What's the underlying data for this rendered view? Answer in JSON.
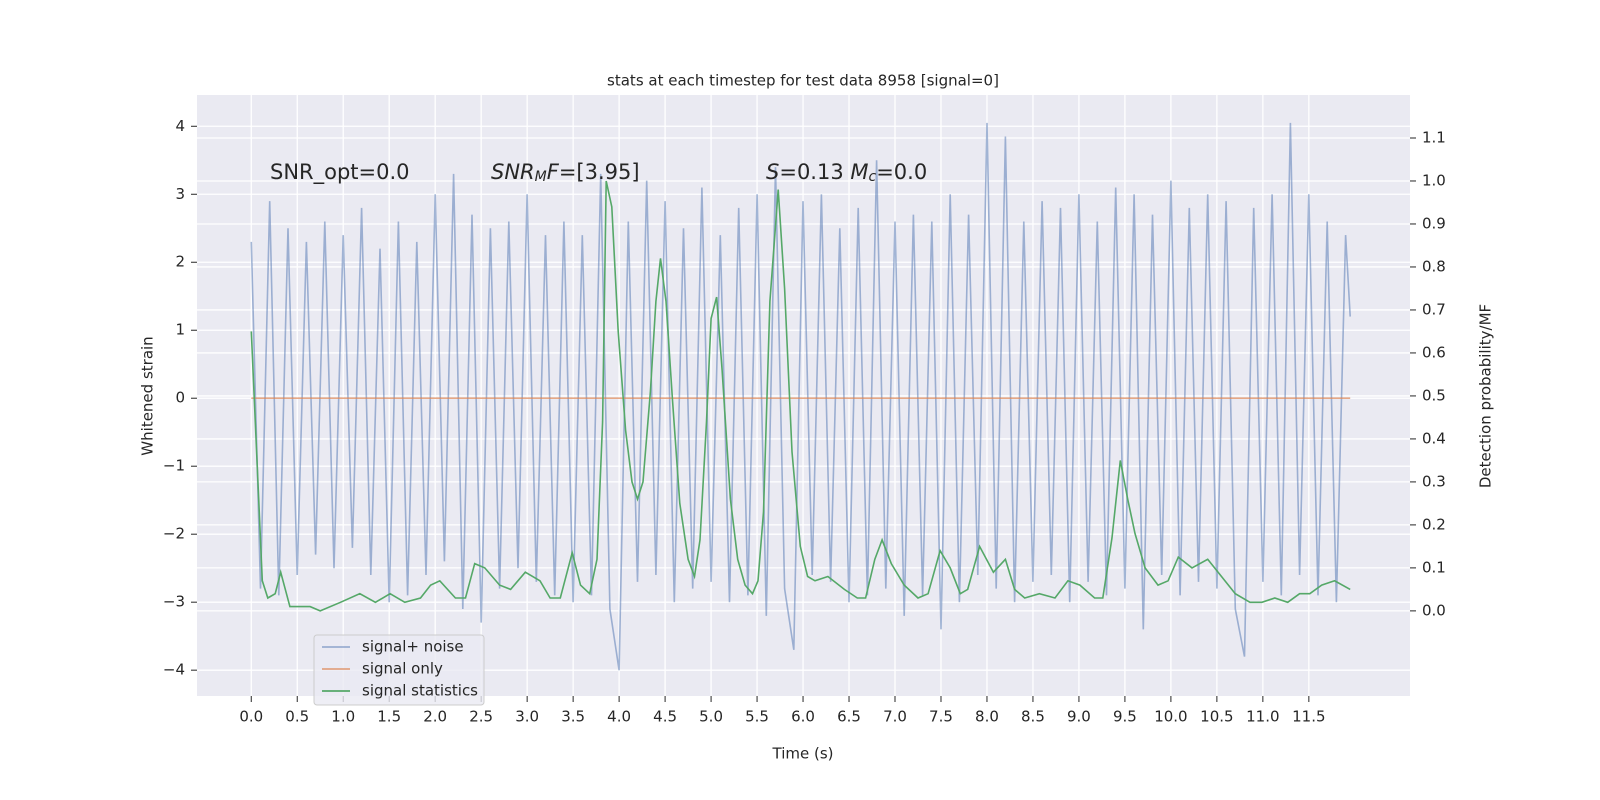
{
  "chart_data": {
    "type": "line",
    "title": "stats at each timestep for test data 8958 [signal=0]",
    "xlabel": "Time (s)",
    "ylabel": "Whitened strain",
    "y2label": "Detection probability/MF",
    "xlim": [
      -0.59,
      12.6
    ],
    "ylim": [
      -4.38,
      4.46
    ],
    "y2lim": [
      -0.198,
      1.2
    ],
    "xticks": [
      {
        "value": 0,
        "label": "0.0"
      },
      0.5,
      {
        "value": 1,
        "label": "1.0"
      },
      1.5,
      {
        "value": 2,
        "label": "2.0"
      },
      2.5,
      {
        "value": 3,
        "label": "3.0"
      },
      3.5,
      {
        "value": 4,
        "label": "4.0"
      },
      4.5,
      {
        "value": 5,
        "label": "5.0"
      },
      5.5,
      {
        "value": 6,
        "label": "6.0"
      },
      6.5,
      {
        "value": 7,
        "label": "7.0"
      },
      7.5,
      {
        "value": 8,
        "label": "8.0"
      },
      8.5,
      {
        "value": 9,
        "label": "9.0"
      },
      9.5,
      {
        "value": 10,
        "label": "10.0"
      },
      10.5,
      {
        "value": 11,
        "label": "11.0"
      },
      11.5
    ],
    "yticks": [
      {
        "value": -4,
        "label": "−4"
      },
      {
        "value": -3,
        "label": "−3"
      },
      {
        "value": -2,
        "label": "−2"
      },
      {
        "value": -1,
        "label": "−1"
      },
      0,
      1,
      2,
      3,
      4
    ],
    "y2ticks": [
      {
        "value": 0,
        "label": "0.0"
      },
      0.1,
      0.2,
      0.3,
      0.4,
      0.5,
      0.6,
      0.7,
      0.8,
      0.9,
      {
        "value": 1,
        "label": "1.0"
      },
      1.1
    ],
    "grid": true,
    "legend": "lower left",
    "annotations": [
      [
        {
          "text": "SNR_opt=0.0",
          "style": "normal"
        }
      ],
      [
        {
          "text": "SNR",
          "style": "italic"
        },
        {
          "text": "M",
          "style": "sub"
        },
        {
          "text": "F",
          "style": "italic"
        },
        {
          "text": "=[3.95]",
          "style": "normal"
        }
      ],
      [
        {
          "text": "S",
          "style": "italic"
        },
        {
          "text": "=0.13   ",
          "style": "normal"
        },
        {
          "text": "M",
          "style": "italic"
        },
        {
          "text": "c",
          "style": "sub"
        },
        {
          "text": "=0.0",
          "style": "normal"
        }
      ]
    ],
    "series": [
      {
        "name": "signal+ noise",
        "color": "#4c72b0",
        "opacity": 0.5,
        "axis": "y",
        "x": [
          0.0,
          0.1,
          0.2,
          0.3,
          0.4,
          0.5,
          0.6,
          0.7,
          0.8,
          0.9,
          1.0,
          1.1,
          1.2,
          1.3,
          1.4,
          1.5,
          1.6,
          1.7,
          1.8,
          1.9,
          2.0,
          2.1,
          2.2,
          2.3,
          2.4,
          2.5,
          2.6,
          2.7,
          2.8,
          2.9,
          3.0,
          3.1,
          3.2,
          3.3,
          3.4,
          3.5,
          3.6,
          3.7,
          3.8,
          3.9,
          4.0,
          4.1,
          4.2,
          4.3,
          4.4,
          4.5,
          4.6,
          4.7,
          4.8,
          4.9,
          5.0,
          5.1,
          5.2,
          5.3,
          5.4,
          5.5,
          5.6,
          5.7,
          5.8,
          5.9,
          6.0,
          6.1,
          6.2,
          6.3,
          6.4,
          6.5,
          6.6,
          6.7,
          6.8,
          6.9,
          7.0,
          7.1,
          7.2,
          7.3,
          7.4,
          7.5,
          7.6,
          7.7,
          7.8,
          7.9,
          8.0,
          8.1,
          8.2,
          8.3,
          8.4,
          8.5,
          8.6,
          8.7,
          8.8,
          8.9,
          9.0,
          9.1,
          9.2,
          9.3,
          9.4,
          9.5,
          9.6,
          9.7,
          9.8,
          9.9,
          10.0,
          10.1,
          10.2,
          10.3,
          10.4,
          10.5,
          10.6,
          10.7,
          10.8,
          10.9,
          11.0,
          11.1,
          11.2,
          11.3,
          11.4,
          11.5,
          11.6,
          11.7,
          11.8,
          11.9,
          11.95
        ],
        "values": [
          2.3,
          -2.8,
          2.9,
          -2.9,
          2.5,
          -2.6,
          2.3,
          -2.3,
          2.6,
          -2.5,
          2.4,
          -2.2,
          2.8,
          -2.6,
          2.2,
          -3.0,
          2.6,
          -2.9,
          2.3,
          -2.6,
          3.0,
          -2.4,
          3.3,
          -3.1,
          2.7,
          -3.3,
          2.5,
          -2.8,
          2.6,
          -2.5,
          3.0,
          -2.7,
          2.4,
          -2.9,
          2.6,
          -3.0,
          2.4,
          -2.9,
          3.3,
          -3.1,
          -4.0,
          2.6,
          -2.7,
          3.2,
          -2.6,
          2.9,
          -3.0,
          2.5,
          -2.8,
          3.1,
          -2.7,
          2.4,
          -3.0,
          2.8,
          -2.9,
          3.0,
          -3.2,
          3.4,
          -2.8,
          -3.7,
          2.9,
          -2.6,
          3.0,
          -2.7,
          2.5,
          -3.0,
          2.8,
          -2.9,
          3.5,
          -2.8,
          2.6,
          -3.2,
          2.7,
          -2.9,
          2.6,
          -3.4,
          3.0,
          -3.0,
          2.7,
          -2.6,
          4.05,
          -2.8,
          3.85,
          -3.0,
          2.6,
          -2.7,
          2.9,
          -2.6,
          2.8,
          -3.0,
          3.0,
          -2.7,
          2.6,
          -2.9,
          3.1,
          -2.8,
          3.0,
          -3.4,
          2.7,
          -2.6,
          3.2,
          -2.9,
          2.8,
          -2.7,
          3.0,
          -2.8,
          2.9,
          -3.1,
          -3.8,
          2.8,
          -2.7,
          3.0,
          -2.9,
          4.05,
          -2.6,
          3.0,
          -2.9,
          2.6,
          -3.0,
          2.4,
          1.2
        ]
      },
      {
        "name": "signal only",
        "color": "#dd8452",
        "opacity": 0.7,
        "axis": "y",
        "x": [
          0.0,
          11.95
        ],
        "values": [
          0,
          0
        ]
      },
      {
        "name": "signal statistics",
        "color": "#55a868",
        "opacity": 1,
        "axis": "y2",
        "x": [
          0.0,
          0.12,
          0.18,
          0.26,
          0.32,
          0.42,
          0.53,
          0.64,
          0.75,
          0.97,
          1.18,
          1.35,
          1.51,
          1.67,
          1.84,
          1.95,
          2.05,
          2.22,
          2.33,
          2.43,
          2.54,
          2.7,
          2.82,
          2.98,
          3.14,
          3.25,
          3.36,
          3.49,
          3.58,
          3.68,
          3.76,
          3.82,
          3.86,
          3.92,
          3.99,
          4.07,
          4.14,
          4.2,
          4.26,
          4.34,
          4.4,
          4.45,
          4.51,
          4.58,
          4.66,
          4.75,
          4.82,
          4.88,
          4.95,
          5.0,
          5.06,
          5.12,
          5.21,
          5.29,
          5.37,
          5.45,
          5.51,
          5.57,
          5.64,
          5.73,
          5.8,
          5.88,
          5.97,
          6.05,
          6.13,
          6.27,
          6.45,
          6.59,
          6.68,
          6.78,
          6.86,
          6.96,
          7.1,
          7.25,
          7.36,
          7.49,
          7.6,
          7.71,
          7.79,
          7.92,
          8.07,
          8.2,
          8.3,
          8.41,
          8.57,
          8.74,
          8.88,
          9.01,
          9.17,
          9.26,
          9.36,
          9.45,
          9.53,
          9.61,
          9.72,
          9.86,
          9.97,
          10.08,
          10.23,
          10.4,
          10.55,
          10.7,
          10.86,
          10.99,
          11.13,
          11.27,
          11.4,
          11.51,
          11.64,
          11.78,
          11.95
        ],
        "values": [
          0.65,
          0.07,
          0.03,
          0.04,
          0.09,
          0.01,
          0.01,
          0.01,
          0.0,
          0.02,
          0.04,
          0.02,
          0.04,
          0.02,
          0.03,
          0.06,
          0.07,
          0.03,
          0.03,
          0.11,
          0.1,
          0.06,
          0.05,
          0.09,
          0.07,
          0.03,
          0.03,
          0.135,
          0.06,
          0.04,
          0.12,
          0.44,
          1.0,
          0.94,
          0.65,
          0.42,
          0.3,
          0.26,
          0.3,
          0.51,
          0.72,
          0.82,
          0.72,
          0.49,
          0.25,
          0.12,
          0.08,
          0.165,
          0.44,
          0.68,
          0.73,
          0.56,
          0.26,
          0.12,
          0.06,
          0.04,
          0.07,
          0.23,
          0.72,
          0.98,
          0.75,
          0.37,
          0.15,
          0.08,
          0.07,
          0.08,
          0.05,
          0.03,
          0.03,
          0.12,
          0.165,
          0.11,
          0.06,
          0.03,
          0.04,
          0.14,
          0.1,
          0.04,
          0.05,
          0.15,
          0.09,
          0.12,
          0.05,
          0.03,
          0.04,
          0.03,
          0.07,
          0.06,
          0.03,
          0.03,
          0.17,
          0.35,
          0.26,
          0.18,
          0.1,
          0.06,
          0.07,
          0.125,
          0.1,
          0.12,
          0.08,
          0.04,
          0.02,
          0.02,
          0.03,
          0.02,
          0.04,
          0.04,
          0.06,
          0.07,
          0.05
        ]
      }
    ]
  }
}
